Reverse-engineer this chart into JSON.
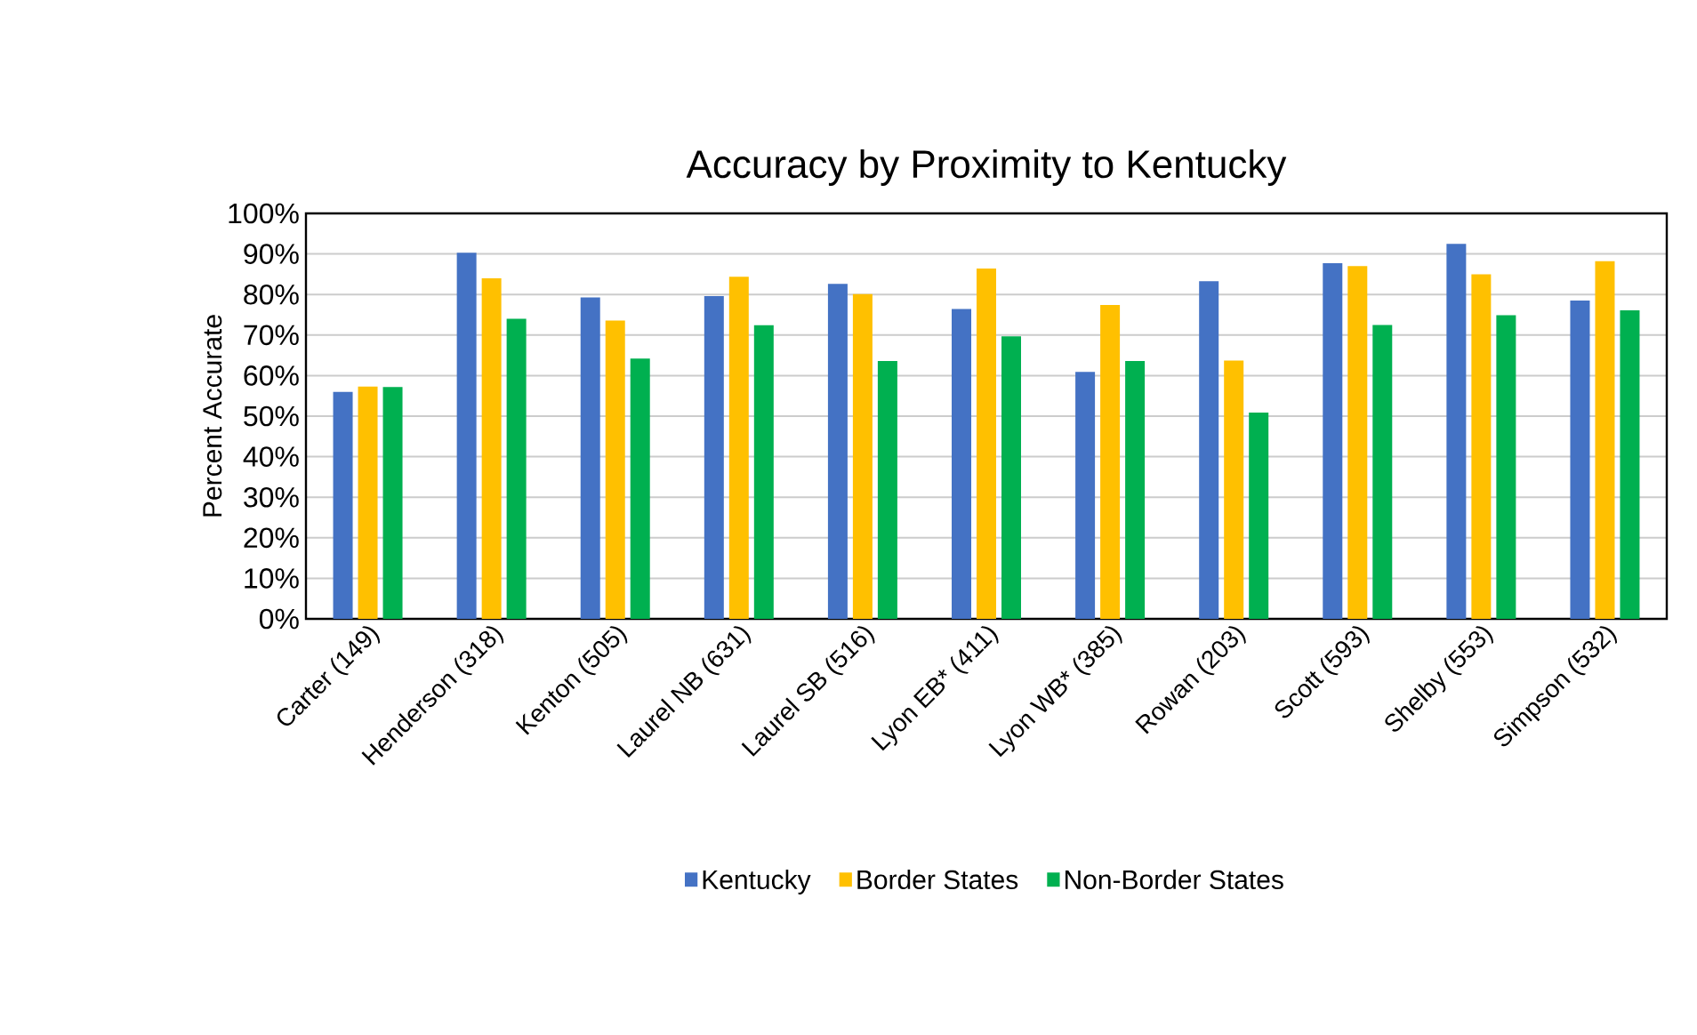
{
  "chart_data": {
    "type": "bar",
    "title": "Accuracy by Proximity to Kentucky",
    "ylabel": "Percent Accurate",
    "categories": [
      "Carter (149)",
      "Henderson (318)",
      "Kenton (505)",
      "Laurel NB (631)",
      "Laurel SB (516)",
      "Lyon EB* (411)",
      "Lyon WB* (385)",
      "Rowan (203)",
      "Scott (593)",
      "Shelby (553)",
      "Simpson (532)"
    ],
    "series": [
      {
        "name": "Kentucky",
        "color": "#4472c4",
        "values": [
          56.0,
          90.3,
          79.3,
          79.6,
          82.6,
          76.4,
          60.9,
          83.3,
          87.7,
          92.5,
          78.5
        ]
      },
      {
        "name": "Border States",
        "color": "#ffc000",
        "values": [
          57.3,
          84.0,
          73.6,
          84.4,
          80.1,
          86.4,
          77.4,
          63.7,
          87.0,
          85.0,
          88.2
        ]
      },
      {
        "name": "Non-Border States",
        "color": "#00b050",
        "values": [
          57.2,
          74.0,
          64.2,
          72.4,
          63.6,
          69.7,
          63.6,
          50.9,
          72.5,
          74.9,
          76.1
        ]
      }
    ],
    "ylim": [
      0,
      100
    ],
    "yticks": [
      {
        "value": 0,
        "label": "0%"
      },
      {
        "value": 10,
        "label": "10%"
      },
      {
        "value": 20,
        "label": "20%"
      },
      {
        "value": 30,
        "label": "30%"
      },
      {
        "value": 40,
        "label": "40%"
      },
      {
        "value": 50,
        "label": "50%"
      },
      {
        "value": 60,
        "label": "60%"
      },
      {
        "value": 70,
        "label": "70%"
      },
      {
        "value": 80,
        "label": "80%"
      },
      {
        "value": 90,
        "label": "90%"
      },
      {
        "value": 100,
        "label": "100%"
      }
    ],
    "grid": "y",
    "legend": "bottom"
  }
}
